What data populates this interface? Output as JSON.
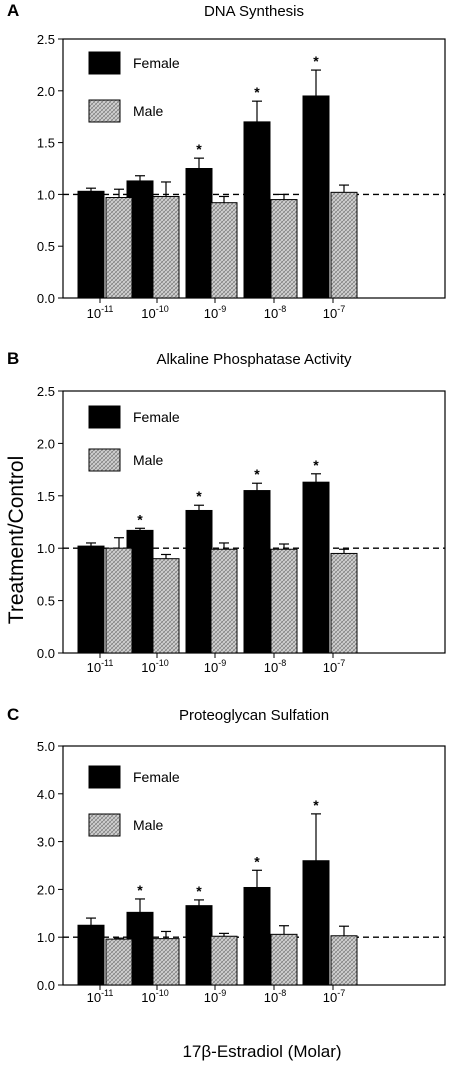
{
  "figure": {
    "ylabel": "Treatment/Control",
    "xlabel": "17β-Estradiol (Molar)"
  },
  "colors": {
    "female": "#000000",
    "male_pattern": "crosshatch-gray"
  },
  "chart_data": [
    {
      "type": "bar",
      "panel": "A",
      "title": "DNA Synthesis",
      "categories": [
        {
          "base": "10",
          "exp": "-11"
        },
        {
          "base": "10",
          "exp": "-10"
        },
        {
          "base": "10",
          "exp": "-9"
        },
        {
          "base": "10",
          "exp": "-8"
        },
        {
          "base": "10",
          "exp": "-7"
        }
      ],
      "ylim": [
        0,
        2.5
      ],
      "yticks": [
        "0.0",
        "0.5",
        "1.0",
        "1.5",
        "2.0",
        "2.5"
      ],
      "reference_line": 1.0,
      "legend": [
        "Female",
        "Male"
      ],
      "series": [
        {
          "name": "Female",
          "values": [
            1.03,
            1.13,
            1.25,
            1.7,
            1.95
          ],
          "errors": [
            0.03,
            0.05,
            0.1,
            0.2,
            0.25
          ],
          "significant": [
            false,
            false,
            true,
            true,
            true
          ]
        },
        {
          "name": "Male",
          "values": [
            0.97,
            0.98,
            0.92,
            0.95,
            1.02
          ],
          "errors": [
            0.08,
            0.14,
            0.06,
            0.05,
            0.07
          ],
          "significant": [
            false,
            false,
            false,
            false,
            false
          ]
        }
      ]
    },
    {
      "type": "bar",
      "panel": "B",
      "title": "Alkaline Phosphatase Activity",
      "categories": [
        {
          "base": "10",
          "exp": "-11"
        },
        {
          "base": "10",
          "exp": "-10"
        },
        {
          "base": "10",
          "exp": "-9"
        },
        {
          "base": "10",
          "exp": "-8"
        },
        {
          "base": "10",
          "exp": "-7"
        }
      ],
      "ylim": [
        0,
        2.5
      ],
      "yticks": [
        "0.0",
        "0.5",
        "1.0",
        "1.5",
        "2.0",
        "2.5"
      ],
      "reference_line": 1.0,
      "legend": [
        "Female",
        "Male"
      ],
      "series": [
        {
          "name": "Female",
          "values": [
            1.02,
            1.17,
            1.36,
            1.55,
            1.63
          ],
          "errors": [
            0.03,
            0.02,
            0.05,
            0.07,
            0.08
          ],
          "significant": [
            false,
            true,
            true,
            true,
            true
          ]
        },
        {
          "name": "Male",
          "values": [
            1.0,
            0.9,
            0.99,
            0.99,
            0.95
          ],
          "errors": [
            0.1,
            0.04,
            0.06,
            0.05,
            0.04
          ],
          "significant": [
            false,
            false,
            false,
            false,
            false
          ]
        }
      ]
    },
    {
      "type": "bar",
      "panel": "C",
      "title": "Proteoglycan Sulfation",
      "categories": [
        {
          "base": "10",
          "exp": "-11"
        },
        {
          "base": "10",
          "exp": "-10"
        },
        {
          "base": "10",
          "exp": "-9"
        },
        {
          "base": "10",
          "exp": "-8"
        },
        {
          "base": "10",
          "exp": "-7"
        }
      ],
      "ylim": [
        0,
        5.0
      ],
      "yticks": [
        "0.0",
        "1.0",
        "2.0",
        "3.0",
        "4.0",
        "5.0"
      ],
      "reference_line": 1.0,
      "legend": [
        "Female",
        "Male"
      ],
      "series": [
        {
          "name": "Female",
          "values": [
            1.25,
            1.52,
            1.66,
            2.04,
            2.6
          ],
          "errors": [
            0.15,
            0.28,
            0.12,
            0.36,
            0.98
          ],
          "significant": [
            false,
            true,
            true,
            true,
            true
          ]
        },
        {
          "name": "Male",
          "values": [
            0.96,
            0.97,
            1.02,
            1.06,
            1.03
          ],
          "errors": [
            0.02,
            0.15,
            0.06,
            0.18,
            0.2
          ],
          "significant": [
            false,
            false,
            false,
            false,
            false
          ]
        }
      ]
    }
  ]
}
